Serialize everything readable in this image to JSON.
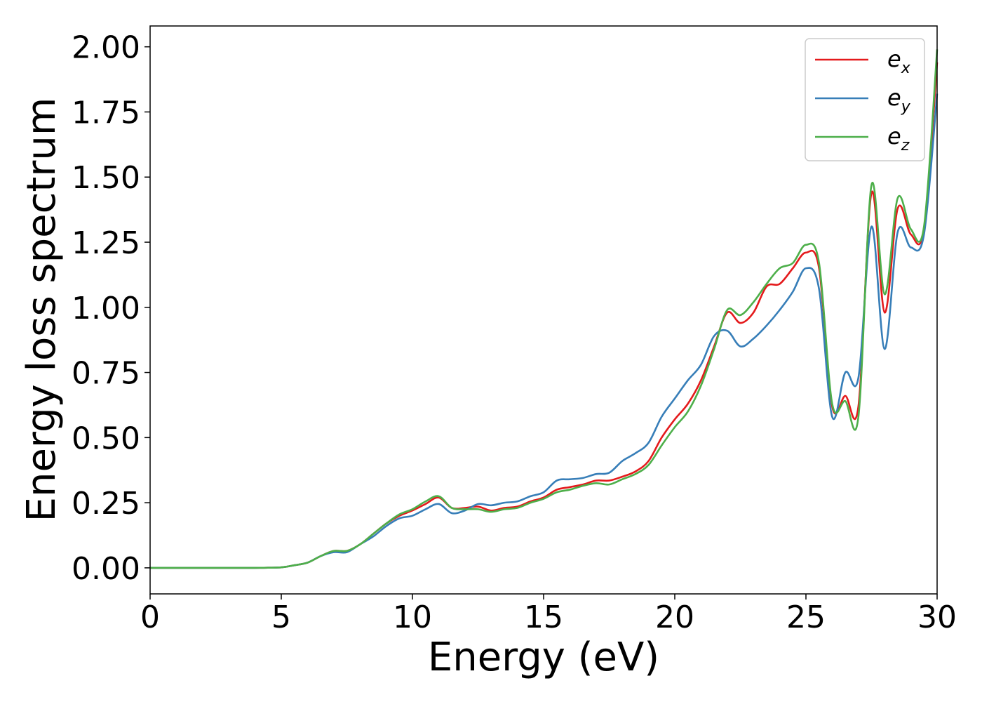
{
  "chart_data": {
    "type": "line",
    "title": "",
    "xlabel": "Energy (eV)",
    "ylabel": "Energy loss spectrum",
    "xlim": [
      0,
      30
    ],
    "ylim": [
      -0.1,
      2.08
    ],
    "xticks": [
      0,
      5,
      10,
      15,
      20,
      25,
      30
    ],
    "xtick_labels": [
      "0",
      "5",
      "10",
      "15",
      "20",
      "25",
      "30"
    ],
    "yticks": [
      0,
      0.25,
      0.5,
      0.75,
      1.0,
      1.25,
      1.5,
      1.75,
      2.0
    ],
    "ytick_labels": [
      "0.00",
      "0.25",
      "0.50",
      "0.75",
      "1.00",
      "1.25",
      "1.50",
      "1.75",
      "2.00"
    ],
    "grid": false,
    "legend_position": "top-right",
    "x": [
      0,
      1,
      2,
      3,
      4,
      5,
      5.5,
      6,
      6.5,
      7,
      7.5,
      8,
      8.5,
      9,
      9.5,
      10,
      10.5,
      11,
      11.5,
      12,
      12.5,
      13,
      13.5,
      14,
      14.5,
      15,
      15.5,
      16,
      16.5,
      17,
      17.5,
      18,
      18.5,
      19,
      19.5,
      20,
      20.5,
      21,
      21.5,
      22,
      22.5,
      23,
      23.5,
      24,
      24.5,
      25,
      25.5,
      26,
      26.5,
      27,
      27.5,
      28,
      28.5,
      29,
      29.5,
      30
    ],
    "series": [
      {
        "name": "e",
        "subscript": "x",
        "color": "#e41a1c",
        "values": [
          0,
          0,
          0,
          0,
          0,
          0.002,
          0.01,
          0.02,
          0.045,
          0.065,
          0.065,
          0.09,
          0.13,
          0.17,
          0.2,
          0.22,
          0.245,
          0.27,
          0.23,
          0.23,
          0.235,
          0.22,
          0.23,
          0.235,
          0.255,
          0.27,
          0.3,
          0.31,
          0.32,
          0.335,
          0.335,
          0.35,
          0.37,
          0.41,
          0.5,
          0.57,
          0.63,
          0.72,
          0.85,
          0.98,
          0.94,
          0.98,
          1.08,
          1.09,
          1.15,
          1.21,
          1.15,
          0.62,
          0.66,
          0.62,
          1.44,
          0.98,
          1.38,
          1.28,
          1.3,
          1.94
        ]
      },
      {
        "name": "e",
        "subscript": "y",
        "color": "#377eb8",
        "values": [
          0,
          0,
          0,
          0,
          0,
          0.002,
          0.01,
          0.02,
          0.045,
          0.06,
          0.06,
          0.09,
          0.12,
          0.16,
          0.19,
          0.2,
          0.225,
          0.245,
          0.21,
          0.22,
          0.245,
          0.24,
          0.25,
          0.255,
          0.275,
          0.29,
          0.335,
          0.34,
          0.345,
          0.36,
          0.365,
          0.41,
          0.44,
          0.48,
          0.58,
          0.65,
          0.72,
          0.78,
          0.89,
          0.91,
          0.85,
          0.88,
          0.93,
          0.99,
          1.06,
          1.15,
          1.07,
          0.58,
          0.75,
          0.73,
          1.31,
          0.84,
          1.29,
          1.23,
          1.28,
          1.82
        ]
      },
      {
        "name": "e",
        "subscript": "z",
        "color": "#4daf4a",
        "values": [
          0,
          0,
          0,
          0,
          0,
          0.002,
          0.01,
          0.02,
          0.045,
          0.065,
          0.065,
          0.09,
          0.13,
          0.17,
          0.205,
          0.225,
          0.255,
          0.275,
          0.23,
          0.225,
          0.225,
          0.215,
          0.225,
          0.23,
          0.25,
          0.265,
          0.29,
          0.3,
          0.315,
          0.325,
          0.32,
          0.34,
          0.36,
          0.395,
          0.47,
          0.54,
          0.6,
          0.7,
          0.84,
          0.99,
          0.97,
          1.02,
          1.09,
          1.15,
          1.17,
          1.24,
          1.17,
          0.63,
          0.64,
          0.58,
          1.47,
          1.05,
          1.42,
          1.3,
          1.31,
          1.99
        ]
      }
    ]
  }
}
